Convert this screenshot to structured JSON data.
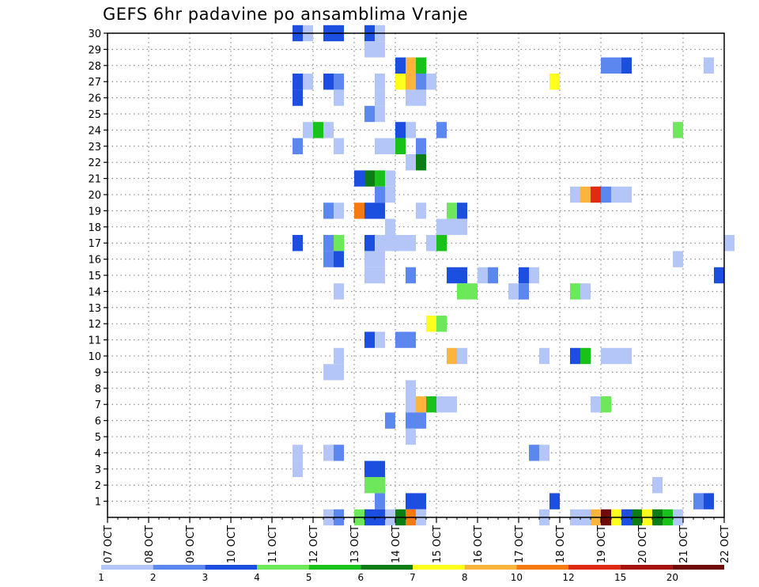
{
  "chart_data": {
    "type": "heatmap",
    "title": "GEFS 6hr padavine po ansamblima Vranje",
    "xlabel": "",
    "ylabel": "",
    "x_ticks": [
      "07 OCT",
      "08 OCT",
      "09 OCT",
      "10 OCT",
      "11 OCT",
      "12 OCT",
      "13 OCT",
      "14 OCT",
      "15 OCT",
      "16 OCT",
      "17 OCT",
      "18 OCT",
      "19 OCT",
      "20 OCT",
      "21 OCT",
      "22 OCT"
    ],
    "y_ticks": [
      "1",
      "2",
      "3",
      "4",
      "5",
      "6",
      "7",
      "8",
      "9",
      "10",
      "11",
      "12",
      "13",
      "14",
      "15",
      "16",
      "17",
      "18",
      "19",
      "20",
      "21",
      "22",
      "23",
      "24",
      "25",
      "26",
      "27",
      "28",
      "29",
      "30"
    ],
    "y_range": [
      0,
      30
    ],
    "x_range_steps": [
      0,
      60
    ],
    "grid": true,
    "colorbar": {
      "labels": [
        "1",
        "2",
        "3",
        "4",
        "5",
        "6",
        "7",
        "8",
        "10",
        "12",
        "15",
        "20"
      ],
      "colors": [
        "#b3c6f7",
        "#5c87ef",
        "#1c4ee0",
        "#6de85a",
        "#19c21a",
        "#0b7d14",
        "#ffff1e",
        "#fcb43c",
        "#f57a0f",
        "#e02a12",
        "#a6120e",
        "#6e0a0a"
      ]
    },
    "cells_note": "each cell: [step (6h from 07 OCT 00z), member row, color class 1-12]",
    "cells": [
      [
        18,
        30,
        3
      ],
      [
        19,
        30,
        1
      ],
      [
        21,
        30,
        3
      ],
      [
        22,
        30,
        3
      ],
      [
        25,
        30,
        3
      ],
      [
        26,
        30,
        1
      ],
      [
        25,
        29,
        1
      ],
      [
        26,
        29,
        1
      ],
      [
        28,
        28,
        3
      ],
      [
        29,
        28,
        8
      ],
      [
        30,
        28,
        5
      ],
      [
        48,
        28,
        2
      ],
      [
        49,
        28,
        2
      ],
      [
        50,
        28,
        3
      ],
      [
        58,
        28,
        1
      ],
      [
        18,
        27,
        3
      ],
      [
        19,
        27,
        1
      ],
      [
        21,
        27,
        3
      ],
      [
        22,
        27,
        2
      ],
      [
        26,
        27,
        1
      ],
      [
        28,
        27,
        7
      ],
      [
        29,
        27,
        8
      ],
      [
        30,
        27,
        2
      ],
      [
        31,
        27,
        1
      ],
      [
        43,
        27,
        7
      ],
      [
        18,
        26,
        3
      ],
      [
        22,
        26,
        1
      ],
      [
        26,
        26,
        1
      ],
      [
        29,
        26,
        1
      ],
      [
        30,
        26,
        1
      ],
      [
        25,
        25,
        2
      ],
      [
        26,
        25,
        1
      ],
      [
        19,
        24,
        1
      ],
      [
        20,
        24,
        5
      ],
      [
        21,
        24,
        1
      ],
      [
        28,
        24,
        3
      ],
      [
        29,
        24,
        1
      ],
      [
        32,
        24,
        2
      ],
      [
        55,
        24,
        4
      ],
      [
        18,
        23,
        2
      ],
      [
        22,
        23,
        1
      ],
      [
        26,
        23,
        1
      ],
      [
        27,
        23,
        1
      ],
      [
        28,
        23,
        5
      ],
      [
        30,
        23,
        2
      ],
      [
        29,
        22,
        1
      ],
      [
        30,
        22,
        6
      ],
      [
        24,
        21,
        3
      ],
      [
        25,
        21,
        6
      ],
      [
        26,
        21,
        5
      ],
      [
        27,
        21,
        1
      ],
      [
        26,
        20,
        2
      ],
      [
        27,
        20,
        1
      ],
      [
        45,
        20,
        1
      ],
      [
        46,
        20,
        8
      ],
      [
        47,
        20,
        10
      ],
      [
        48,
        20,
        2
      ],
      [
        49,
        20,
        1
      ],
      [
        50,
        20,
        1
      ],
      [
        21,
        19,
        2
      ],
      [
        22,
        19,
        1
      ],
      [
        24,
        19,
        9
      ],
      [
        25,
        19,
        3
      ],
      [
        26,
        19,
        3
      ],
      [
        30,
        19,
        1
      ],
      [
        33,
        19,
        4
      ],
      [
        34,
        19,
        3
      ],
      [
        27,
        18,
        1
      ],
      [
        32,
        18,
        1
      ],
      [
        33,
        18,
        1
      ],
      [
        34,
        18,
        1
      ],
      [
        18,
        17,
        3
      ],
      [
        21,
        17,
        2
      ],
      [
        22,
        17,
        4
      ],
      [
        25,
        17,
        3
      ],
      [
        26,
        17,
        1
      ],
      [
        27,
        17,
        1
      ],
      [
        28,
        17,
        1
      ],
      [
        29,
        17,
        1
      ],
      [
        31,
        17,
        1
      ],
      [
        32,
        17,
        5
      ],
      [
        60,
        17,
        1
      ],
      [
        21,
        16,
        2
      ],
      [
        22,
        16,
        3
      ],
      [
        25,
        16,
        1
      ],
      [
        26,
        16,
        1
      ],
      [
        55,
        16,
        1
      ],
      [
        25,
        15,
        1
      ],
      [
        26,
        15,
        1
      ],
      [
        29,
        15,
        2
      ],
      [
        33,
        15,
        3
      ],
      [
        34,
        15,
        3
      ],
      [
        36,
        15,
        1
      ],
      [
        37,
        15,
        2
      ],
      [
        40,
        15,
        3
      ],
      [
        41,
        15,
        1
      ],
      [
        59,
        15,
        3
      ],
      [
        22,
        14,
        1
      ],
      [
        34,
        14,
        4
      ],
      [
        35,
        14,
        4
      ],
      [
        39,
        14,
        1
      ],
      [
        40,
        14,
        2
      ],
      [
        45,
        14,
        4
      ],
      [
        46,
        14,
        1
      ],
      [
        31,
        12,
        7
      ],
      [
        32,
        12,
        4
      ],
      [
        25,
        11,
        3
      ],
      [
        26,
        11,
        1
      ],
      [
        28,
        11,
        2
      ],
      [
        29,
        11,
        2
      ],
      [
        22,
        10,
        1
      ],
      [
        33,
        10,
        8
      ],
      [
        34,
        10,
        1
      ],
      [
        42,
        10,
        1
      ],
      [
        45,
        10,
        3
      ],
      [
        46,
        10,
        5
      ],
      [
        48,
        10,
        1
      ],
      [
        49,
        10,
        1
      ],
      [
        50,
        10,
        1
      ],
      [
        21,
        9,
        1
      ],
      [
        22,
        9,
        1
      ],
      [
        29,
        8,
        1
      ],
      [
        29,
        7,
        1
      ],
      [
        30,
        7,
        8
      ],
      [
        31,
        7,
        5
      ],
      [
        32,
        7,
        1
      ],
      [
        33,
        7,
        1
      ],
      [
        47,
        7,
        1
      ],
      [
        48,
        7,
        4
      ],
      [
        27,
        6,
        2
      ],
      [
        29,
        6,
        2
      ],
      [
        30,
        6,
        2
      ],
      [
        29,
        5,
        1
      ],
      [
        18,
        4,
        1
      ],
      [
        21,
        4,
        1
      ],
      [
        22,
        4,
        2
      ],
      [
        41,
        4,
        2
      ],
      [
        42,
        4,
        1
      ],
      [
        18,
        3,
        1
      ],
      [
        25,
        3,
        3
      ],
      [
        26,
        3,
        3
      ],
      [
        25,
        2,
        4
      ],
      [
        26,
        2,
        4
      ],
      [
        53,
        2,
        1
      ],
      [
        26,
        1,
        2
      ],
      [
        29,
        1,
        3
      ],
      [
        30,
        1,
        3
      ],
      [
        43,
        1,
        3
      ],
      [
        57,
        1,
        2
      ],
      [
        58,
        1,
        3
      ],
      [
        21,
        0,
        1
      ],
      [
        22,
        0,
        2
      ],
      [
        24,
        0,
        4
      ],
      [
        25,
        0,
        3
      ],
      [
        26,
        0,
        3
      ],
      [
        27,
        0,
        1
      ],
      [
        28,
        0,
        6
      ],
      [
        29,
        0,
        9
      ],
      [
        30,
        0,
        1
      ],
      [
        42,
        0,
        1
      ],
      [
        45,
        0,
        1
      ],
      [
        46,
        0,
        1
      ],
      [
        47,
        0,
        8
      ],
      [
        48,
        0,
        12
      ],
      [
        49,
        0,
        7
      ],
      [
        50,
        0,
        3
      ],
      [
        51,
        0,
        6
      ],
      [
        52,
        0,
        7
      ],
      [
        53,
        0,
        6
      ],
      [
        54,
        0,
        5
      ],
      [
        55,
        0,
        1
      ]
    ]
  }
}
